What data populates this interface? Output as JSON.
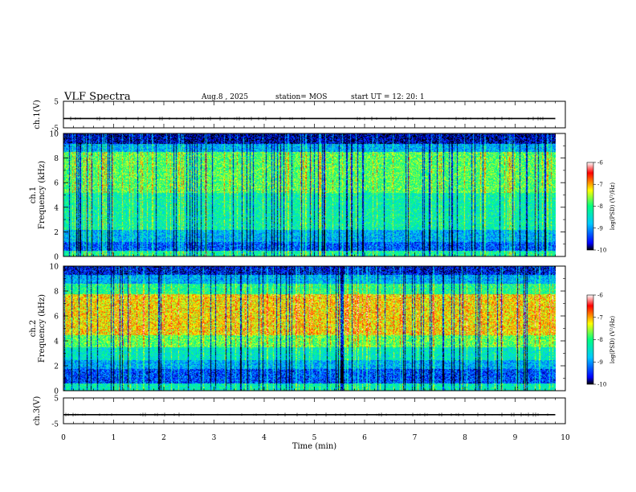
{
  "header": {
    "title": "VLF Spectra",
    "date": "Aug.8  , 2025",
    "station": "station= MOS",
    "start": "start  UT  =    12: 20: 1"
  },
  "chart_data": [
    {
      "type": "line",
      "name": "ch1-waveform",
      "ylabel": "ch.1(V)",
      "ylim": [
        -5,
        5
      ],
      "yticks": [
        "5",
        "-5"
      ],
      "xlim": [
        0,
        10
      ],
      "series": [
        {
          "name": "ch.1",
          "level_volts": -1.5
        }
      ]
    },
    {
      "type": "heatmap",
      "name": "ch1-spectrogram",
      "ylabel_line1": "ch.1",
      "ylabel_line2": "Frequency (kHz)",
      "ylim": [
        0,
        10
      ],
      "yticks": [
        "0",
        "2",
        "4",
        "6",
        "8",
        "10"
      ],
      "xlim": [
        0,
        10
      ],
      "colorbar": {
        "label": "log(PSD) (V²/Hz)",
        "range": [
          -10,
          -6
        ],
        "ticks": [
          "-6",
          "-7",
          "-8",
          "-9",
          "-10"
        ]
      }
    },
    {
      "type": "heatmap",
      "name": "ch2-spectrogram",
      "ylabel_line1": "ch.2",
      "ylabel_line2": "Frequency (kHz)",
      "ylim": [
        0,
        10
      ],
      "yticks": [
        "0",
        "2",
        "4",
        "6",
        "8",
        "10"
      ],
      "xlim": [
        0,
        10
      ],
      "colorbar": {
        "label": "log(PSD) (V²/Hz)",
        "range": [
          -10,
          -6
        ],
        "ticks": [
          "-6",
          "-7",
          "-8",
          "-9",
          "-10"
        ]
      }
    },
    {
      "type": "line",
      "name": "ch3-waveform",
      "ylabel": "ch.3(V)",
      "ylim": [
        -5,
        5
      ],
      "yticks": [
        "5",
        "-5"
      ],
      "xlim": [
        0,
        10
      ],
      "series": [
        {
          "name": "ch.3",
          "level_volts": -1.5
        }
      ]
    }
  ],
  "xaxis": {
    "label": "Time (min)",
    "range": [
      0,
      10
    ],
    "ticks": [
      "0",
      "1",
      "2",
      "3",
      "4",
      "5",
      "6",
      "7",
      "8",
      "9",
      "10"
    ],
    "data_end_min": 9.8
  },
  "colors": {
    "frame": "#000000",
    "colormap": [
      "#000000",
      "#0000ff",
      "#00c8ff",
      "#00ff80",
      "#ffff00",
      "#ff0000",
      "#ffffff"
    ]
  }
}
